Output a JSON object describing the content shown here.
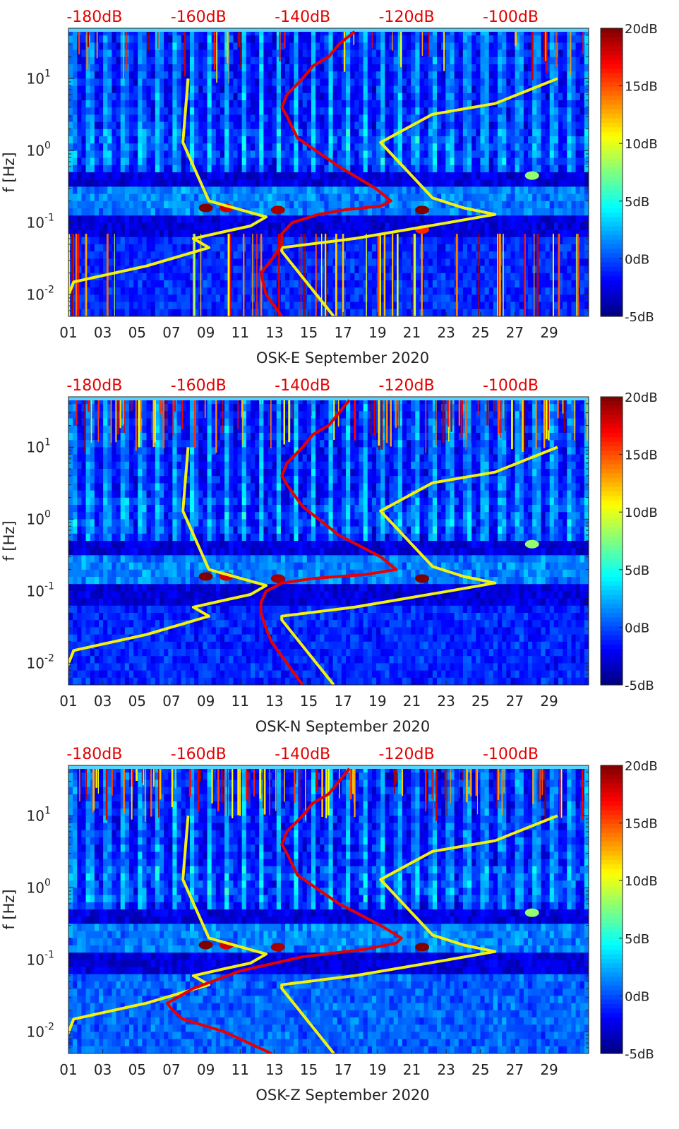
{
  "chart_data": [
    {
      "type": "heatmap",
      "xlabel": "OSK-E September 2020",
      "ylabel": "f [Hz]",
      "x_tick_labels": [
        "01",
        "03",
        "05",
        "07",
        "09",
        "11",
        "13",
        "15",
        "17",
        "19",
        "21",
        "23",
        "25",
        "27",
        "29"
      ],
      "x_tick_days": [
        1,
        3,
        5,
        7,
        9,
        11,
        13,
        15,
        17,
        19,
        21,
        23,
        25,
        27,
        29
      ],
      "xlim": [
        1,
        31.3
      ],
      "y_scale": "log",
      "ylim": [
        0.005,
        50
      ],
      "y_ticks": [
        {
          "value": 0.01,
          "base": "10",
          "exp": "-2"
        },
        {
          "value": 0.1,
          "base": "10",
          "exp": "-1"
        },
        {
          "value": 1,
          "base": "10",
          "exp": "0"
        },
        {
          "value": 10,
          "base": "10",
          "exp": "1"
        }
      ],
      "top_axis_labels": [
        "-180dB",
        "-160dB",
        "-140dB",
        "-120dB",
        "-100dB"
      ],
      "top_axis_range_db": [
        -185,
        -85
      ],
      "top_axis_label_values": [
        -180,
        -160,
        -140,
        -120,
        -100
      ],
      "colorbar": {
        "labels": [
          "20dB",
          "15dB",
          "10dB",
          "5dB",
          "0dB",
          "-5dB"
        ],
        "values": [
          20,
          15,
          10,
          5,
          0,
          -5
        ],
        "range": [
          -5,
          20
        ]
      },
      "hot_spots": [
        {
          "day": 9.0,
          "f": 0.16,
          "db": 20
        },
        {
          "day": 10.2,
          "f": 0.16,
          "db": 18
        },
        {
          "day": 13.2,
          "f": 0.15,
          "db": 19
        },
        {
          "day": 21.6,
          "f": 0.15,
          "db": 20
        },
        {
          "day": 21.6,
          "f": 0.08,
          "db": 16
        },
        {
          "day": 28.0,
          "f": 0.45,
          "db": 8
        }
      ],
      "series": [
        {
          "name": "noise model low (yellow)",
          "color": "#f2f20c",
          "db": [
            -186,
            -185.5,
            -184,
            -170,
            -158,
            -161,
            -155,
            -150,
            -147,
            -158,
            -163,
            -162
          ],
          "f": [
            0.005,
            0.008,
            0.015,
            0.025,
            0.045,
            0.06,
            0.075,
            0.09,
            0.12,
            0.2,
            1.3,
            10
          ]
        },
        {
          "name": "noise model high (yellow)",
          "color": "#f2f20c",
          "db": [
            -134,
            -144,
            -144,
            -130,
            -112,
            -103,
            -109,
            -115,
            -125,
            -115,
            -103,
            -91
          ],
          "f": [
            0.005,
            0.04,
            0.045,
            0.06,
            0.1,
            0.13,
            0.16,
            0.22,
            1.3,
            3.2,
            4.5,
            10
          ]
        },
        {
          "name": "median PSD (red)",
          "color": "#e60000",
          "db": [
            -144,
            -147,
            -148,
            -146,
            -144,
            -144,
            -142,
            -137,
            -132,
            -125,
            -123,
            -126,
            -133,
            -141,
            -143,
            -144,
            -143,
            -140,
            -138,
            -135,
            -133,
            -130
          ],
          "f": [
            0.005,
            0.01,
            0.02,
            0.03,
            0.05,
            0.07,
            0.1,
            0.13,
            0.15,
            0.17,
            0.2,
            0.3,
            0.6,
            1.5,
            3.0,
            4.0,
            6.0,
            10,
            15,
            20,
            30,
            45
          ]
        }
      ]
    },
    {
      "type": "heatmap",
      "xlabel": "OSK-N September 2020",
      "ylabel": "f [Hz]",
      "x_tick_labels": [
        "01",
        "03",
        "05",
        "07",
        "09",
        "11",
        "13",
        "15",
        "17",
        "19",
        "21",
        "23",
        "25",
        "27",
        "29"
      ],
      "x_tick_days": [
        1,
        3,
        5,
        7,
        9,
        11,
        13,
        15,
        17,
        19,
        21,
        23,
        25,
        27,
        29
      ],
      "xlim": [
        1,
        31.3
      ],
      "y_scale": "log",
      "ylim": [
        0.005,
        50
      ],
      "y_ticks": [
        {
          "value": 0.01,
          "base": "10",
          "exp": "-2"
        },
        {
          "value": 0.1,
          "base": "10",
          "exp": "-1"
        },
        {
          "value": 1,
          "base": "10",
          "exp": "0"
        },
        {
          "value": 10,
          "base": "10",
          "exp": "1"
        }
      ],
      "top_axis_labels": [
        "-180dB",
        "-160dB",
        "-140dB",
        "-120dB",
        "-100dB"
      ],
      "top_axis_range_db": [
        -185,
        -85
      ],
      "top_axis_label_values": [
        -180,
        -160,
        -140,
        -120,
        -100
      ],
      "colorbar": {
        "labels": [
          "20dB",
          "15dB",
          "10dB",
          "5dB",
          "0dB",
          "-5dB"
        ],
        "values": [
          20,
          15,
          10,
          5,
          0,
          -5
        ],
        "range": [
          -5,
          20
        ]
      },
      "hot_spots": [
        {
          "day": 9.0,
          "f": 0.16,
          "db": 20
        },
        {
          "day": 10.2,
          "f": 0.16,
          "db": 18
        },
        {
          "day": 13.2,
          "f": 0.15,
          "db": 19
        },
        {
          "day": 21.6,
          "f": 0.15,
          "db": 20
        },
        {
          "day": 28.0,
          "f": 0.45,
          "db": 8
        }
      ],
      "series": [
        {
          "name": "noise model low (yellow)",
          "color": "#f2f20c",
          "db": [
            -186,
            -185.5,
            -184,
            -170,
            -158,
            -161,
            -155,
            -150,
            -147,
            -158,
            -163,
            -162
          ],
          "f": [
            0.005,
            0.008,
            0.015,
            0.025,
            0.045,
            0.06,
            0.075,
            0.09,
            0.12,
            0.2,
            1.3,
            10
          ]
        },
        {
          "name": "noise model high (yellow)",
          "color": "#f2f20c",
          "db": [
            -134,
            -144,
            -144,
            -130,
            -112,
            -103,
            -109,
            -115,
            -125,
            -115,
            -103,
            -91
          ],
          "f": [
            0.005,
            0.04,
            0.045,
            0.06,
            0.1,
            0.13,
            0.16,
            0.22,
            1.3,
            3.2,
            4.5,
            10
          ]
        },
        {
          "name": "median PSD (red)",
          "color": "#e60000",
          "db": [
            -140,
            -143,
            -146,
            -147,
            -148,
            -148,
            -147,
            -144,
            -138,
            -128,
            -122,
            -125,
            -133,
            -140,
            -143,
            -144,
            -143,
            -140,
            -138,
            -135,
            -133,
            -131
          ],
          "f": [
            0.005,
            0.01,
            0.02,
            0.03,
            0.05,
            0.07,
            0.1,
            0.13,
            0.15,
            0.17,
            0.2,
            0.3,
            0.6,
            1.5,
            3.0,
            4.0,
            6.0,
            10,
            15,
            20,
            30,
            45
          ]
        }
      ]
    },
    {
      "type": "heatmap",
      "xlabel": "OSK-Z September 2020",
      "ylabel": "f [Hz]",
      "x_tick_labels": [
        "01",
        "03",
        "05",
        "07",
        "09",
        "11",
        "13",
        "15",
        "17",
        "19",
        "21",
        "23",
        "25",
        "27",
        "29"
      ],
      "x_tick_days": [
        1,
        3,
        5,
        7,
        9,
        11,
        13,
        15,
        17,
        19,
        21,
        23,
        25,
        27,
        29
      ],
      "xlim": [
        1,
        31.3
      ],
      "y_scale": "log",
      "ylim": [
        0.005,
        50
      ],
      "y_ticks": [
        {
          "value": 0.01,
          "base": "10",
          "exp": "-2"
        },
        {
          "value": 0.1,
          "base": "10",
          "exp": "-1"
        },
        {
          "value": 1,
          "base": "10",
          "exp": "0"
        },
        {
          "value": 10,
          "base": "10",
          "exp": "1"
        }
      ],
      "top_axis_labels": [
        "-180dB",
        "-160dB",
        "-140dB",
        "-120dB",
        "-100dB"
      ],
      "top_axis_range_db": [
        -185,
        -85
      ],
      "top_axis_label_values": [
        -180,
        -160,
        -140,
        -120,
        -100
      ],
      "colorbar": {
        "labels": [
          "20dB",
          "15dB",
          "10dB",
          "5dB",
          "0dB",
          "-5dB"
        ],
        "values": [
          20,
          15,
          10,
          5,
          0,
          -5
        ],
        "range": [
          -5,
          20
        ]
      },
      "hot_spots": [
        {
          "day": 9.0,
          "f": 0.16,
          "db": 20
        },
        {
          "day": 10.2,
          "f": 0.16,
          "db": 18
        },
        {
          "day": 13.2,
          "f": 0.15,
          "db": 19
        },
        {
          "day": 21.6,
          "f": 0.15,
          "db": 20
        },
        {
          "day": 28.0,
          "f": 0.45,
          "db": 8
        }
      ],
      "series": [
        {
          "name": "noise model low (yellow)",
          "color": "#f2f20c",
          "db": [
            -186,
            -185.5,
            -184,
            -170,
            -158,
            -161,
            -155,
            -150,
            -147,
            -158,
            -163,
            -162
          ],
          "f": [
            0.005,
            0.008,
            0.015,
            0.025,
            0.045,
            0.06,
            0.075,
            0.09,
            0.12,
            0.2,
            1.3,
            10
          ]
        },
        {
          "name": "noise model high (yellow)",
          "color": "#f2f20c",
          "db": [
            -134,
            -144,
            -144,
            -130,
            -112,
            -103,
            -109,
            -115,
            -125,
            -115,
            -103,
            -91
          ],
          "f": [
            0.005,
            0.04,
            0.045,
            0.06,
            0.1,
            0.13,
            0.16,
            0.22,
            1.3,
            3.2,
            4.5,
            10
          ]
        },
        {
          "name": "median PSD (red)",
          "color": "#e60000",
          "db": [
            -146,
            -155,
            -163,
            -165,
            -166,
            -161,
            -152,
            -140,
            -128,
            -122,
            -121,
            -125,
            -133,
            -141,
            -143,
            -144,
            -143,
            -140,
            -138,
            -135,
            -133,
            -131
          ],
          "f": [
            0.005,
            0.01,
            0.015,
            0.02,
            0.025,
            0.04,
            0.07,
            0.11,
            0.14,
            0.17,
            0.2,
            0.3,
            0.6,
            1.5,
            3.0,
            4.0,
            6.0,
            10,
            15,
            20,
            30,
            45
          ]
        }
      ]
    }
  ]
}
